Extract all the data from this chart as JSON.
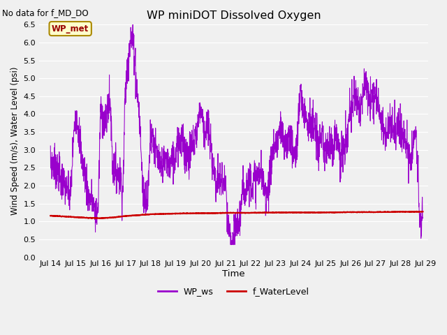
{
  "title": "WP miniDOT Dissolved Oxygen",
  "top_left_text": "No data for f_MD_DO",
  "xlabel": "Time",
  "ylabel": "Wind Speed (m/s), Water Level (psi)",
  "ylim": [
    0.0,
    6.5
  ],
  "yticks": [
    0.0,
    0.5,
    1.0,
    1.5,
    2.0,
    2.5,
    3.0,
    3.5,
    4.0,
    4.5,
    5.0,
    5.5,
    6.0,
    6.5
  ],
  "xlim_days": [
    13.55,
    29.1
  ],
  "x_tick_labels": [
    "Jul 14",
    "Jul 15",
    "Jul 16",
    "Jul 17",
    "Jul 18",
    "Jul 19",
    "Jul 20",
    "Jul 21",
    "Jul 22",
    "Jul 23",
    "Jul 24",
    "Jul 25",
    "Jul 26",
    "Jul 27",
    "Jul 28",
    "Jul 29"
  ],
  "x_tick_positions": [
    14,
    15,
    16,
    17,
    18,
    19,
    20,
    21,
    22,
    23,
    24,
    25,
    26,
    27,
    28,
    29
  ],
  "bg_color": "#f0f0f0",
  "plot_bg_color": "#f0f0f0",
  "grid_color": "#ffffff",
  "wp_ws_color": "#9900cc",
  "f_wl_color": "#cc0000",
  "legend_label_ws": "WP_ws",
  "legend_label_wl": "f_WaterLevel",
  "inset_label": "WP_met",
  "inset_bg": "#ffffcc",
  "inset_border": "#aa8800"
}
